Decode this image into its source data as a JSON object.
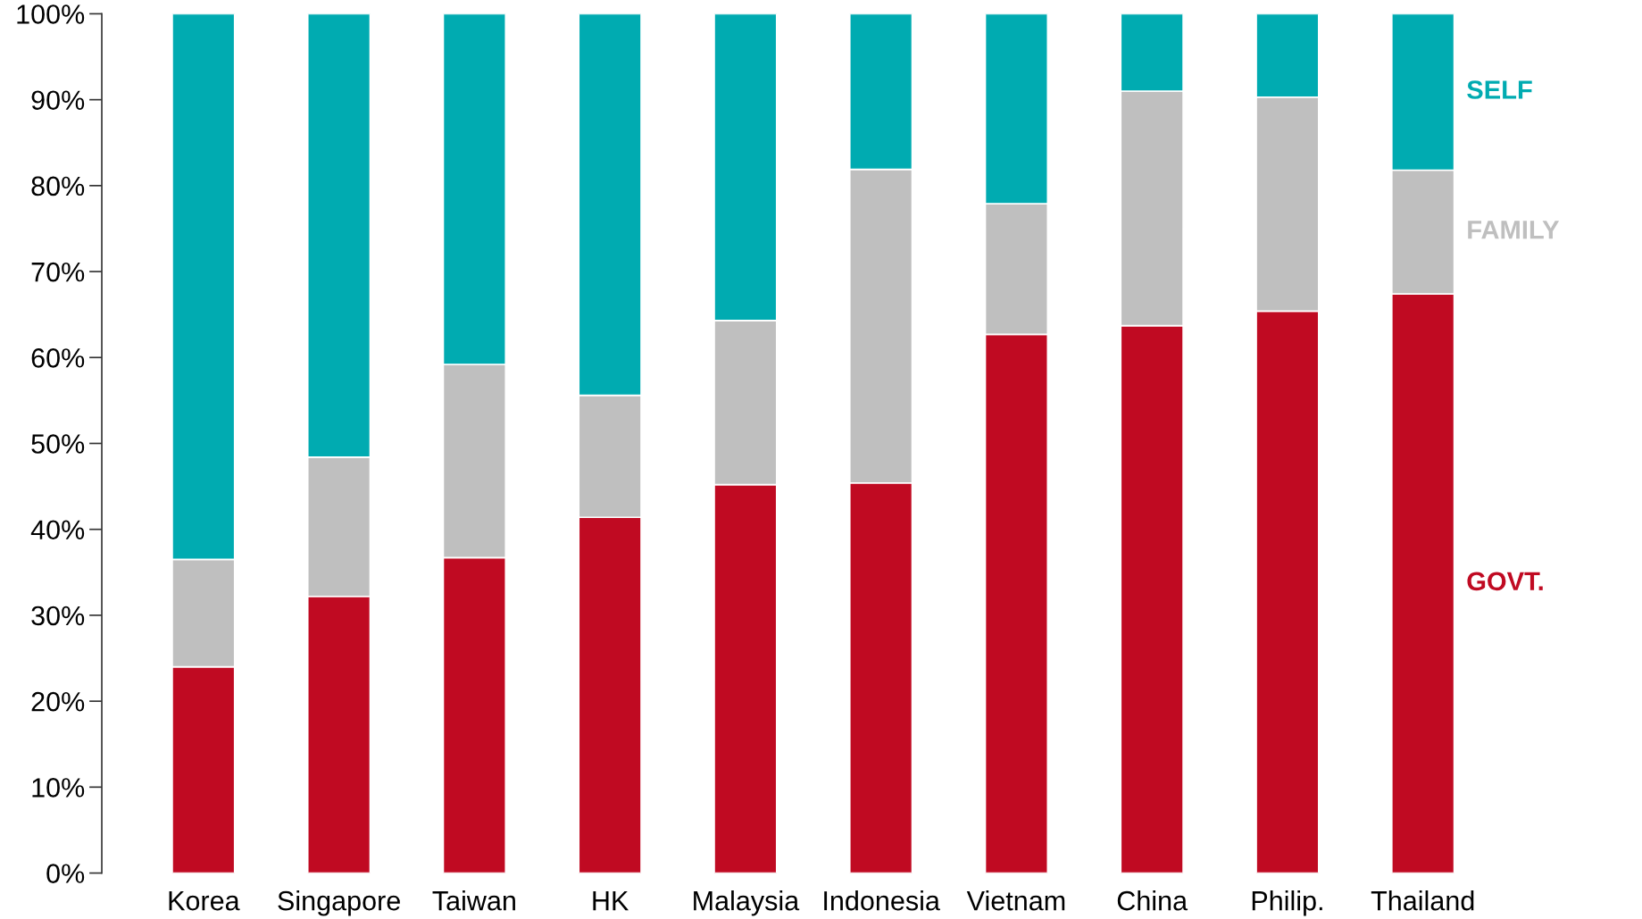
{
  "chart_data": {
    "type": "bar",
    "stacked": true,
    "categories": [
      "Korea",
      "Singapore",
      "Taiwan",
      "HK",
      "Malaysia",
      "Indonesia",
      "Vietnam",
      "China",
      "Philip.",
      "Thailand"
    ],
    "series": [
      {
        "name": "GOVT.",
        "color": "#c00a22",
        "values": [
          24.0,
          32.2,
          36.7,
          41.4,
          45.2,
          45.4,
          62.7,
          63.7,
          65.4,
          67.4
        ]
      },
      {
        "name": "FAMILY",
        "color": "#bfbfbf",
        "values": [
          12.5,
          16.2,
          22.5,
          14.2,
          19.1,
          36.5,
          15.2,
          27.3,
          24.9,
          14.4
        ]
      },
      {
        "name": "SELF",
        "color": "#00abb1",
        "values": [
          63.5,
          51.6,
          40.8,
          44.4,
          35.7,
          18.1,
          22.1,
          9.0,
          9.7,
          18.2
        ]
      }
    ],
    "ylim": [
      0,
      100
    ],
    "yticks": [
      {
        "value": 0,
        "label": "0%"
      },
      {
        "value": 10,
        "label": "10%"
      },
      {
        "value": 20,
        "label": "20%"
      },
      {
        "value": 30,
        "label": "30%"
      },
      {
        "value": 40,
        "label": "40%"
      },
      {
        "value": 50,
        "label": "50%"
      },
      {
        "value": 60,
        "label": "60%"
      },
      {
        "value": 70,
        "label": "70%"
      },
      {
        "value": 80,
        "label": "80%"
      },
      {
        "value": 90,
        "label": "90%"
      },
      {
        "value": 100,
        "label": "100%"
      }
    ],
    "legend": "right",
    "grid": false
  }
}
